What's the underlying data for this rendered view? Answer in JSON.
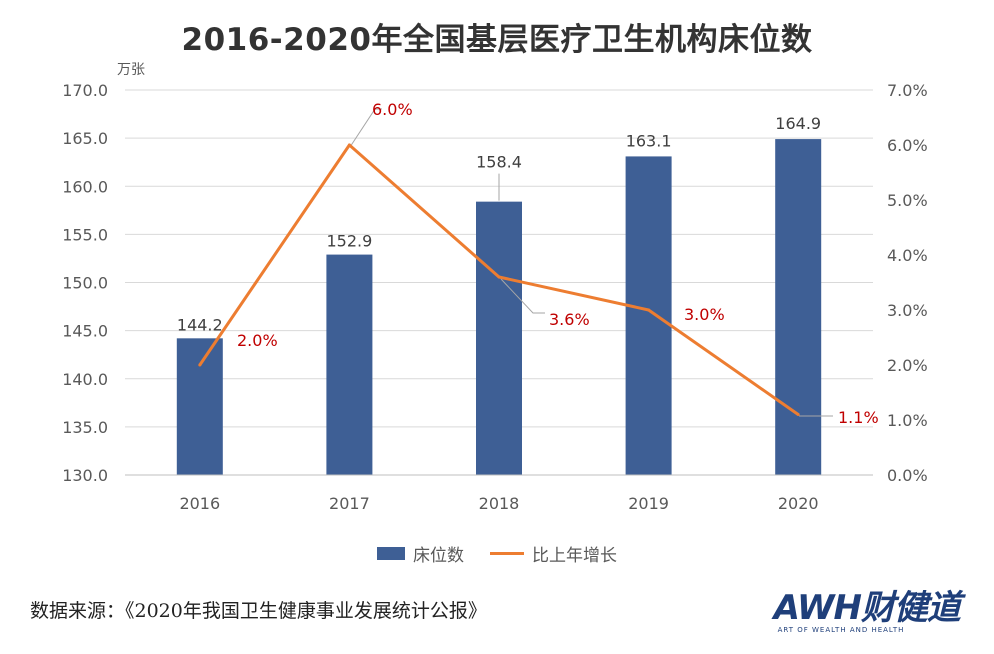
{
  "title": "2016-2020年全国基层医疗卫生机构床位数",
  "colors": {
    "bar": "#3e5f95",
    "line": "#ed7d31",
    "line_label": "#c00000",
    "axis_text": "#595959"
  },
  "chart_data": {
    "type": "bar+line",
    "categories": [
      "2016",
      "2017",
      "2018",
      "2019",
      "2020"
    ],
    "series": [
      {
        "name": "床位数",
        "type": "bar",
        "axis": "left",
        "values": [
          144.2,
          152.9,
          158.4,
          163.1,
          164.9
        ],
        "labels": [
          "144.2",
          "152.9",
          "158.4",
          "163.1",
          "164.9"
        ]
      },
      {
        "name": "比上年增长",
        "type": "line",
        "axis": "right",
        "values": [
          2.0,
          6.0,
          3.6,
          3.0,
          1.1
        ],
        "labels": [
          "2.0%",
          "6.0%",
          "3.6%",
          "3.0%",
          "1.1%"
        ]
      }
    ],
    "y_left": {
      "unit": "万张",
      "min": 130,
      "max": 170,
      "step": 5,
      "ticks": [
        "130.0",
        "135.0",
        "140.0",
        "145.0",
        "150.0",
        "155.0",
        "160.0",
        "165.0",
        "170.0"
      ]
    },
    "y_right": {
      "min": 0,
      "max": 7,
      "step": 1,
      "ticks": [
        "0.0%",
        "1.0%",
        "2.0%",
        "3.0%",
        "4.0%",
        "5.0%",
        "6.0%",
        "7.0%"
      ]
    },
    "legend": [
      "床位数",
      "比上年增长"
    ],
    "legend_position": "bottom"
  },
  "source": "数据来源：《2020年我国卫生健康事业发展统计公报》",
  "brand": {
    "name": "AWH财健道",
    "tagline": "ART OF WEALTH AND HEALTH"
  }
}
